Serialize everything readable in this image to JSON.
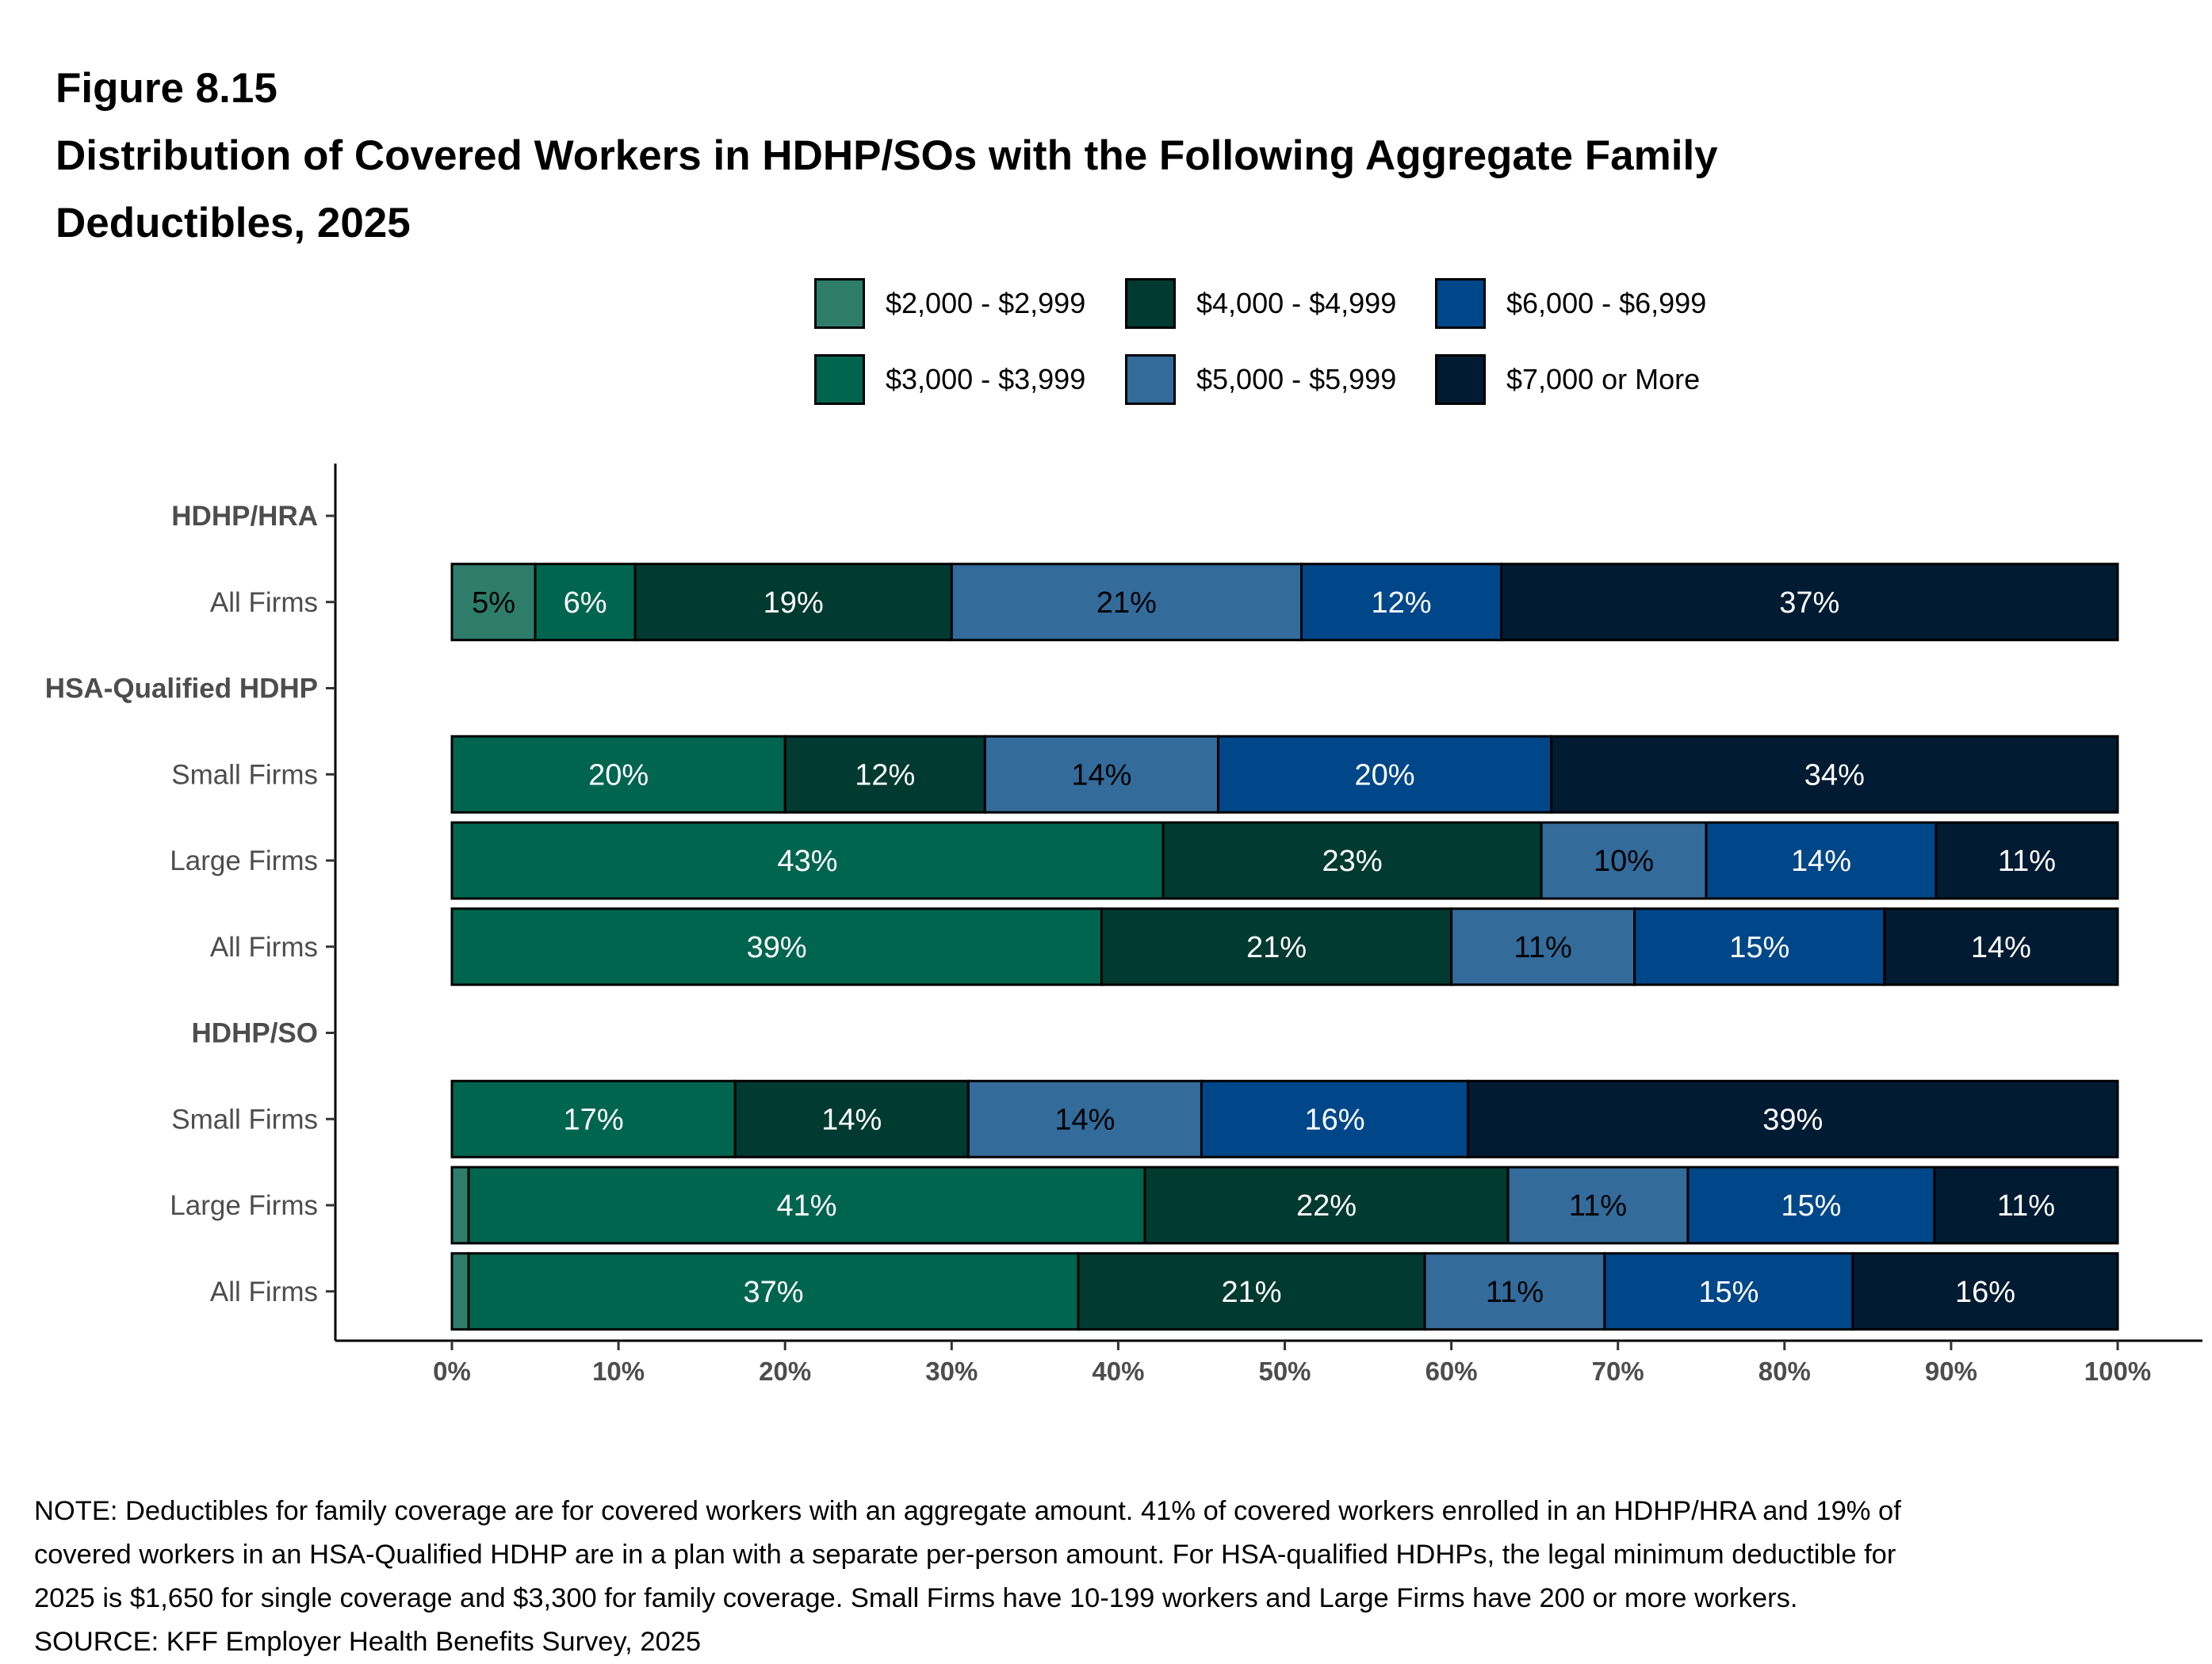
{
  "figure": {
    "number": "Figure 8.15",
    "title_lines": [
      "Distribution of Covered Workers in HDHP/SOs with the Following Aggregate Family",
      "Deductibles, 2025"
    ]
  },
  "colors": {
    "d2000": "#2E7D6B",
    "d3000": "#00654F",
    "d4000": "#003A30",
    "d5000": "#336B9B",
    "d6000": "#004789",
    "d7000": "#011B33"
  },
  "legend": [
    {
      "label": "$2,000 - $2,999",
      "color": "#2E7D6B"
    },
    {
      "label": "$3,000 - $3,999",
      "color": "#00654F"
    },
    {
      "label": "$4,000 - $4,999",
      "color": "#003A30"
    },
    {
      "label": "$5,000 - $5,999",
      "color": "#336B9B"
    },
    {
      "label": "$6,000 - $6,999",
      "color": "#004789"
    },
    {
      "label": "$7,000 or More",
      "color": "#011B33"
    }
  ],
  "chart_data": {
    "type": "bar",
    "orientation": "horizontal",
    "stacked": true,
    "xlim": [
      0,
      100
    ],
    "x_ticks": [
      "0%",
      "10%",
      "20%",
      "30%",
      "40%",
      "50%",
      "60%",
      "70%",
      "80%",
      "90%",
      "100%"
    ],
    "legend_position": "top",
    "series": [
      {
        "name": "$2,000 - $2,999"
      },
      {
        "name": "$3,000 - $3,999"
      },
      {
        "name": "$4,000 - $4,999"
      },
      {
        "name": "$5,000 - $5,999"
      },
      {
        "name": "$6,000 - $6,999"
      },
      {
        "name": "$7,000 or More"
      }
    ],
    "rows": [
      {
        "label": "HDHP/HRA",
        "header": true
      },
      {
        "label": "All Firms",
        "values": [
          5,
          6,
          19,
          21,
          12,
          37
        ],
        "labels": [
          "5%",
          "6%",
          "19%",
          "21%",
          "12%",
          "37%"
        ]
      },
      {
        "label": "HSA-Qualified HDHP",
        "header": true
      },
      {
        "label": "Small Firms",
        "values": [
          0,
          20,
          12,
          14,
          20,
          34
        ],
        "labels": [
          "",
          "20%",
          "12%",
          "14%",
          "20%",
          "34%"
        ]
      },
      {
        "label": "Large Firms",
        "values": [
          0,
          42.7,
          22.7,
          9.9,
          13.8,
          10.9
        ],
        "labels": [
          "",
          "43%",
          "23%",
          "10%",
          "14%",
          "11%"
        ]
      },
      {
        "label": "All Firms",
        "values": [
          0,
          39,
          21,
          11,
          15,
          14
        ],
        "labels": [
          "",
          "39%",
          "21%",
          "11%",
          "15%",
          "14%"
        ]
      },
      {
        "label": "HDHP/SO",
        "header": true
      },
      {
        "label": "Small Firms",
        "values": [
          0,
          17,
          14,
          14,
          16,
          39
        ],
        "labels": [
          "",
          "17%",
          "14%",
          "14%",
          "16%",
          "39%"
        ]
      },
      {
        "label": "Large Firms",
        "values": [
          1,
          40.6,
          21.8,
          10.8,
          14.8,
          11
        ],
        "labels": [
          "",
          "41%",
          "22%",
          "11%",
          "15%",
          "11%"
        ]
      },
      {
        "label": "All Firms",
        "values": [
          1,
          36.6,
          20.8,
          10.8,
          14.9,
          15.9
        ],
        "labels": [
          "",
          "37%",
          "21%",
          "11%",
          "15%",
          "16%"
        ]
      }
    ]
  },
  "note": {
    "lines": [
      "NOTE: Deductibles for family coverage are for covered workers with an aggregate amount. 41% of covered workers enrolled in an HDHP/HRA and 19% of",
      "covered workers in an HSA-Qualified HDHP are in a plan with a separate per-person amount. For HSA-qualified HDHPs, the legal minimum deductible for",
      "2025 is $1,650 for single coverage and $3,300 for family coverage. Small Firms have 10-199 workers and Large Firms have 200 or more workers."
    ],
    "source": "SOURCE: KFF Employer Health Benefits Survey, 2025"
  }
}
